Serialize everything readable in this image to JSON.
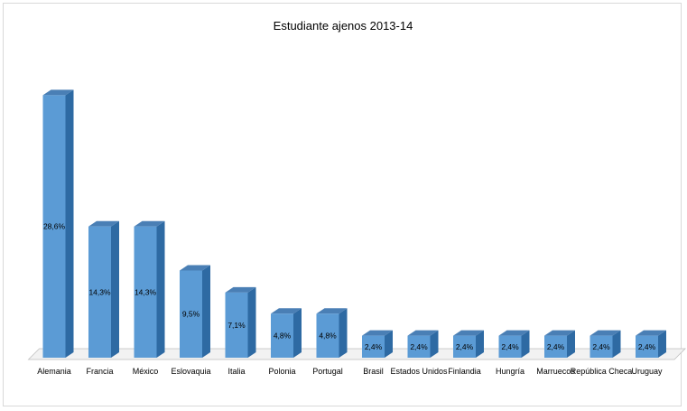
{
  "chart_data": {
    "type": "bar",
    "title": "Estudiante ajenos 2013-14",
    "xlabel": "",
    "ylabel": "",
    "ylim": [
      0,
      30
    ],
    "grid": false,
    "legend": "none",
    "bar_color": "#5b9bd5",
    "bar_side_color": "#2e6aa3",
    "bar_top_color": "#4a7fb5",
    "floor_color": "#f2f2f2",
    "categories": [
      "Alemania",
      "Francia",
      "México",
      "Eslovaquia",
      "Italia",
      "Polonia",
      "Portugal",
      "Brasil",
      "Estados Unidos",
      "Finlandia",
      "Hungría",
      "Marruecos",
      "República Checa",
      "Uruguay"
    ],
    "values": [
      28.6,
      14.3,
      14.3,
      9.5,
      7.1,
      4.8,
      4.8,
      2.4,
      2.4,
      2.4,
      2.4,
      2.4,
      2.4,
      2.4
    ],
    "data_labels": [
      "28,6%",
      "14,3%",
      "14,3%",
      "9,5%",
      "7,1%",
      "4,8%",
      "4,8%",
      "2,4%",
      "2,4%",
      "2,4%",
      "2,4%",
      "2,4%",
      "2,4%",
      "2,4%"
    ]
  }
}
